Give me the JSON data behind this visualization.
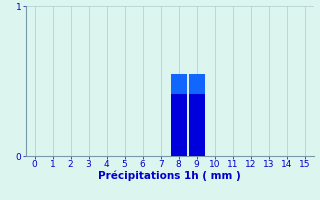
{
  "categories": [
    0,
    1,
    2,
    3,
    4,
    5,
    6,
    7,
    8,
    9,
    10,
    11,
    12,
    13,
    14,
    15
  ],
  "values": [
    0,
    0,
    0,
    0,
    0,
    0,
    0,
    0,
    0.55,
    0.55,
    0,
    0,
    0,
    0,
    0,
    0
  ],
  "bar_color_dark": "#0000dd",
  "bar_color_light": "#1166ff",
  "xlabel": "Précipitations 1h ( mm )",
  "ylim": [
    0,
    1
  ],
  "xlim": [
    -0.5,
    15.5
  ],
  "xticks": [
    0,
    1,
    2,
    3,
    4,
    5,
    6,
    7,
    8,
    9,
    10,
    11,
    12,
    13,
    14,
    15
  ],
  "yticks": [
    0,
    1
  ],
  "background_color": "#ddf5ef",
  "grid_color": "#aacccc",
  "xlabel_color": "#0000cc",
  "tick_color": "#0000cc",
  "axis_color": "#7799aa",
  "bar_width": 0.9,
  "xlabel_fontsize": 7.5,
  "tick_fontsize": 6.5
}
